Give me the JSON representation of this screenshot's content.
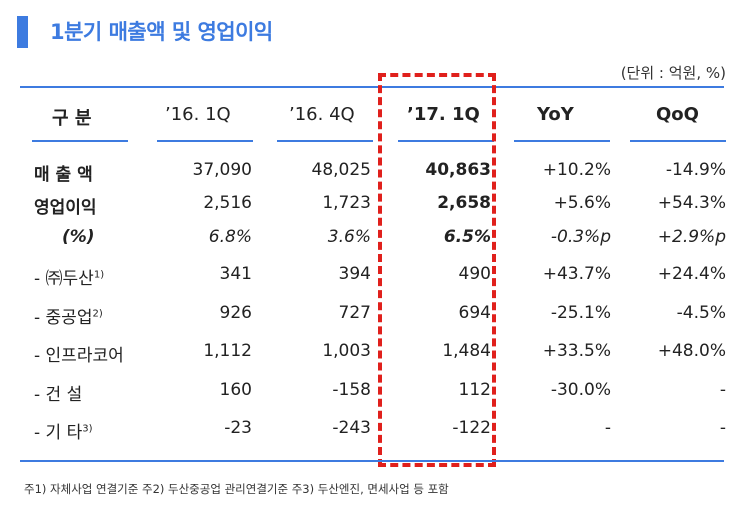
{
  "title": "1분기 매출액 및 영업이익",
  "unit": "(단위 : 억원, %)",
  "headers": {
    "category": "구   분",
    "c1": "’16. 1Q",
    "c2": "’16. 4Q",
    "c3": "’17. 1Q",
    "c4": "YoY",
    "c5": "QoQ"
  },
  "rows": [
    {
      "label": "매 출 액",
      "c1": "37,090",
      "c2": "48,025",
      "c3": "40,863",
      "c4": "+10.2%",
      "c5": "-14.9%"
    },
    {
      "label": "영업이익",
      "c1": "2,516",
      "c2": "1,723",
      "c3": "2,658",
      "c4": "+5.6%",
      "c5": "+54.3%"
    },
    {
      "label": "(%)",
      "c1": "6.8%",
      "c2": "3.6%",
      "c3": "6.5%",
      "c4": "-0.3%p",
      "c5": "+2.9%p"
    },
    {
      "label": "- ㈜두산",
      "sup": "1)",
      "c1": "341",
      "c2": "394",
      "c3": "490",
      "c4": "+43.7%",
      "c5": "+24.4%"
    },
    {
      "label": "- 중공업",
      "sup": "2)",
      "c1": "926",
      "c2": "727",
      "c3": "694",
      "c4": "-25.1%",
      "c5": "-4.5%"
    },
    {
      "label": "- 인프라코어",
      "c1": "1,112",
      "c2": "1,003",
      "c3": "1,484",
      "c4": "+33.5%",
      "c5": "+48.0%"
    },
    {
      "label": "- 건 설",
      "c1": "160",
      "c2": "-158",
      "c3": "112",
      "c4": "-30.0%",
      "c5": "-"
    },
    {
      "label": "- 기 타",
      "sup": "3)",
      "c1": "-23",
      "c2": "-243",
      "c3": "-122",
      "c4": "-",
      "c5": "-"
    }
  ],
  "footnote": "주1) 자체사업 연결기준   주2) 두산중공업 관리연결기준   주3) 두산엔진, 면세사업 등 포함"
}
